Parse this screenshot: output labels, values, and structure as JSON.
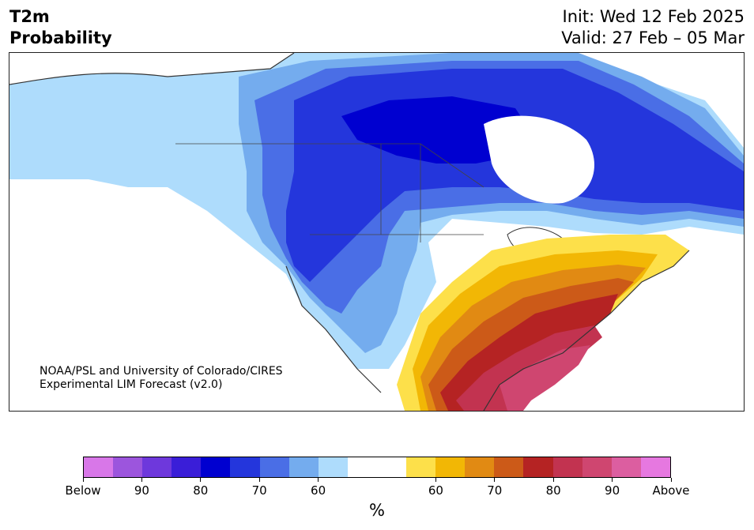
{
  "header": {
    "variable": "T2m",
    "variable_type": "Probability",
    "init": "Init: Wed 12 Feb 2025",
    "valid": "Valid: 27 Feb – 05 Mar"
  },
  "credit": {
    "line1": "NOAA/PSL and University of Colorado/CIRES",
    "line2": "Experimental LIM Forecast (v2.0)"
  },
  "colorbar": {
    "unit": "%",
    "below_colors": [
      "#d877e8",
      "#9c55dd",
      "#6e38dc",
      "#3a1ed8",
      "#0000d0",
      "#2436dc",
      "#4a6ee6",
      "#74acee",
      "#aedcfc"
    ],
    "neutral_color": "#ffffff",
    "above_colors": [
      "#fde04a",
      "#f2b705",
      "#e18a13",
      "#cc5a18",
      "#b52323",
      "#c23350",
      "#cf4670",
      "#dc5ea0",
      "#e678e0"
    ],
    "tick_labels": [
      "Below",
      "90",
      "80",
      "70",
      "60",
      "60",
      "70",
      "80",
      "90",
      "Above"
    ]
  },
  "map_colors": {
    "below_light": "#aedcfc",
    "below_mid": "#74acee",
    "below_med": "#4a6ee6",
    "below_strong": "#2436dc",
    "below_deep": "#0000d0",
    "above_1": "#fde04a",
    "above_2": "#f2b705",
    "above_3": "#e18a13",
    "above_4": "#cc5a18",
    "above_5": "#b52323",
    "above_6": "#c23350",
    "above_7": "#cf4670",
    "coast": "#333333"
  }
}
